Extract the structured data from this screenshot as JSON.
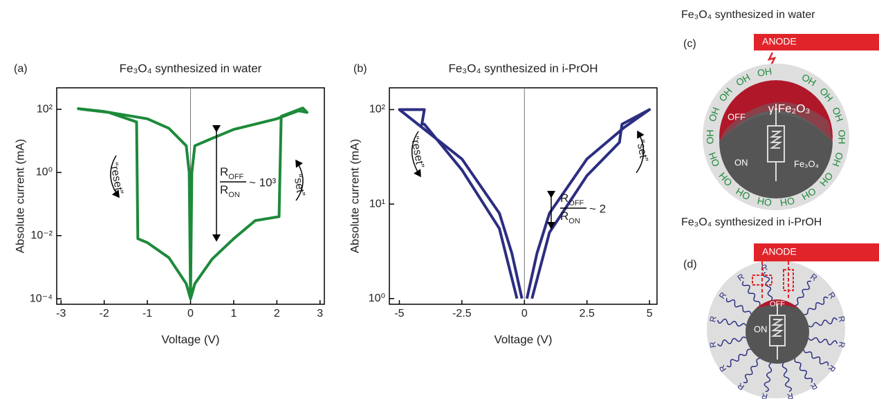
{
  "chart_data": [
    {
      "type": "line",
      "panel": "(a)",
      "title": "Fe₃O₄ synthesized in water",
      "x_label": "Voltage (V)",
      "y_label": "Absolute current  (mA)",
      "xlim": [
        -3.1,
        3.1
      ],
      "xticks": [
        -3,
        -2,
        -1,
        0,
        1,
        2,
        3
      ],
      "ylim": [
        6.7e-05,
        480
      ],
      "log_y": true,
      "yticks": [
        {
          "value": 0.0001,
          "label": "10⁻⁴"
        },
        {
          "value": 0.01,
          "label": "10⁻²"
        },
        {
          "value": 1,
          "label": "10⁰"
        },
        {
          "value": 100,
          "label": "10²"
        }
      ],
      "x": [
        0,
        -0.03,
        -0.1,
        -0.5,
        -1,
        -2,
        -2.6,
        -2.5,
        -1.9,
        -1.25,
        -1.22,
        -1,
        -0.5,
        -0.1,
        0,
        0.03,
        0.1,
        0.5,
        1,
        2,
        2.5,
        2.7,
        2.6,
        2.1,
        2.05,
        1.5,
        1,
        0.5,
        0.1,
        0
      ],
      "series": [
        {
          "color": "#1d8a3a",
          "values": [
            0.0001,
            1,
            7,
            25,
            50,
            85,
            105,
            100,
            80,
            40,
            0.008,
            0.006,
            0.002,
            0.0003,
            0.0001,
            1,
            7,
            12,
            23,
            50,
            90,
            80,
            110,
            60,
            0.04,
            0.03,
            0.008,
            0.0018,
            0.0003,
            0.0001
          ]
        }
      ],
      "annotations": {
        "reset": "“reset”",
        "set": "“set”",
        "r": "R",
        "off": "OFF",
        "on": "ON",
        "ratio": "~ 10³"
      }
    },
    {
      "type": "line",
      "panel": "(b)",
      "title": "Fe₃O₄ synthesized in i-PrOH",
      "x_label": "Voltage (V)",
      "y_label": "Absolute current  (mA)",
      "xlim": [
        -5.4,
        5.3
      ],
      "xticks": [
        -5,
        -2.5,
        0,
        2.5,
        5
      ],
      "ylim": [
        0.87,
        170
      ],
      "log_y": true,
      "yticks": [
        {
          "value": 1,
          "label": "10⁰"
        },
        {
          "value": 10,
          "label": "10¹"
        },
        {
          "value": 100,
          "label": "10²"
        }
      ],
      "x": [
        -0.3,
        -1,
        -2.5,
        -4,
        -4.1,
        -4,
        -5,
        -2.5,
        -1,
        -0.5,
        -0.1,
        null,
        0.1,
        0.5,
        1,
        2.5,
        4,
        5,
        3.9,
        3.8,
        2.5,
        1,
        0.3
      ],
      "series": [
        {
          "color": "#2b2e80",
          "values": [
            1,
            5.5,
            23,
            70,
            70,
            100,
            100,
            30,
            8,
            3,
            1,
            null,
            1,
            3,
            8,
            30,
            65,
            100,
            70,
            45,
            20,
            5,
            1
          ]
        }
      ],
      "annotations": {
        "reset": "“reset”",
        "set": "“set”",
        "r": "R",
        "off": "OFF",
        "on": "ON",
        "ratio": "~ 2"
      }
    }
  ],
  "diagrams": {
    "c": {
      "title": "Fe₃O₄ synthesized in water",
      "panel": "(c)",
      "anode": "ANODE",
      "shell": "γ-Fe₂O₃",
      "off": "OFF",
      "on": "ON",
      "core": "Fe₃O₄",
      "ligand": "OH"
    },
    "d": {
      "title": "Fe₃O₄ synthesized in i-PrOH",
      "panel": "(d)",
      "anode": "ANODE",
      "off": "OFF",
      "on": "ON",
      "ligand": "R"
    }
  }
}
